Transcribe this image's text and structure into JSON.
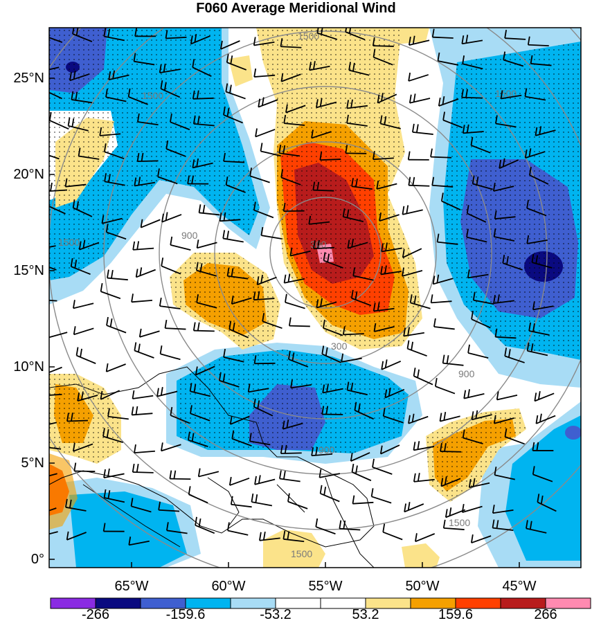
{
  "title": "F060 Average Meridional Wind",
  "lat_labels": [
    "25°N",
    "20°N",
    "15°N",
    "10°N",
    "5°N",
    "0°"
  ],
  "lon_labels": [
    "65°W",
    "60°W",
    "55°W",
    "50°W",
    "45°W"
  ],
  "colorbar": {
    "labels": [
      "-266",
      "-159.6",
      "-53.2",
      "53.2",
      "159.6",
      "266"
    ],
    "colors": [
      "#8a2be2",
      "#0a0a80",
      "#3f5fd0",
      "#00b4f0",
      "#a8dcf5",
      "#ffffff",
      "#ffffff",
      "#fbe38a",
      "#f5a000",
      "#ff4000",
      "#b81c1c",
      "#ff8ab0"
    ]
  },
  "range_ring_labels": [
    "300",
    "300",
    "900",
    "900",
    "900",
    "1500",
    "1500",
    "1500",
    "1500",
    "1500",
    "1500",
    "1500"
  ],
  "colors": {
    "strong_neg": "#3f5fd0",
    "mid_neg": "#00b4f0",
    "weak_neg": "#a8dcf5",
    "weak_pos": "#fbe38a",
    "mid_pos": "#f5a000",
    "strong_pos": "#ff4000",
    "max_pos": "#b81c1c",
    "extreme_pos": "#ff8ab0",
    "extreme_neg": "#0a0a80"
  }
}
